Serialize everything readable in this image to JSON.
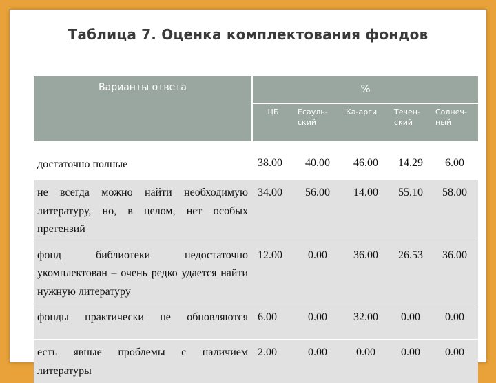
{
  "title": "Таблица 7. Оценка комплектования фондов",
  "table": {
    "header_variants": "Варианты ответа",
    "header_percent": "%",
    "columns": [
      "ЦБ",
      "Есауль-ский",
      "Ка-арги",
      "Течен-ский",
      "Солнеч-ный"
    ],
    "rows": [
      {
        "label": "достаточно полные",
        "values": [
          "38.00",
          "40.00",
          "46.00",
          "14.29",
          "6.00"
        ]
      },
      {
        "label": "не всегда можно найти необходимую литературу, но, в целом, нет особых претензий",
        "values": [
          "34.00",
          "56.00",
          "14.00",
          "55.10",
          "58.00"
        ]
      },
      {
        "label": "фонд библиотеки недостаточно укомплектован – очень редко удается найти нужную литературу",
        "values": [
          "12.00",
          "0.00",
          "36.00",
          "26.53",
          "36.00"
        ]
      },
      {
        "label": "фонды практически не обновляются",
        "values": [
          "6.00",
          "0.00",
          "32.00",
          "0.00",
          "0.00"
        ]
      },
      {
        "label": "есть явные проблемы с наличием литературы",
        "values": [
          "2.00",
          "0.00",
          "0.00",
          "0.00",
          "0.00"
        ]
      }
    ]
  }
}
